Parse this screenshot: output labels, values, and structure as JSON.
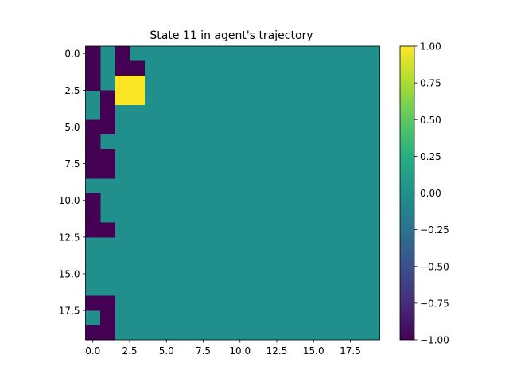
{
  "chart_data": {
    "type": "heatmap",
    "title": "State 11 in agent's trajectory",
    "rows": 20,
    "cols": 20,
    "xticks": [
      0.0,
      2.5,
      5.0,
      7.5,
      10.0,
      12.5,
      15.0,
      17.5
    ],
    "yticks": [
      0.0,
      2.5,
      5.0,
      7.5,
      10.0,
      12.5,
      15.0,
      17.5
    ],
    "xtick_labels": [
      "0.0",
      "2.5",
      "5.0",
      "7.5",
      "10.0",
      "12.5",
      "15.0",
      "17.5"
    ],
    "ytick_labels": [
      "0.0",
      "2.5",
      "5.0",
      "7.5",
      "10.0",
      "12.5",
      "15.0",
      "17.5"
    ],
    "colorbar": {
      "vmin": -1.0,
      "vmax": 1.0,
      "colormap": "viridis",
      "ticks": [
        -1.0,
        -0.75,
        -0.5,
        -0.25,
        0.0,
        0.25,
        0.5,
        0.75,
        1.0
      ],
      "tick_labels": [
        "−1.00",
        "−0.75",
        "−0.50",
        "−0.25",
        "0.00",
        "0.25",
        "0.50",
        "0.75",
        "1.00"
      ]
    },
    "grid": false,
    "default_value": 0,
    "cells": [
      {
        "row": 0,
        "col": 0,
        "value": -1
      },
      {
        "row": 0,
        "col": 2,
        "value": -1
      },
      {
        "row": 1,
        "col": 0,
        "value": -1
      },
      {
        "row": 1,
        "col": 2,
        "value": -1
      },
      {
        "row": 1,
        "col": 3,
        "value": -1
      },
      {
        "row": 2,
        "col": 0,
        "value": -1
      },
      {
        "row": 2,
        "col": 2,
        "value": 1
      },
      {
        "row": 2,
        "col": 3,
        "value": 1
      },
      {
        "row": 3,
        "col": 1,
        "value": -1
      },
      {
        "row": 3,
        "col": 2,
        "value": 1
      },
      {
        "row": 3,
        "col": 3,
        "value": 1
      },
      {
        "row": 4,
        "col": 1,
        "value": -1
      },
      {
        "row": 5,
        "col": 0,
        "value": -1
      },
      {
        "row": 5,
        "col": 1,
        "value": -1
      },
      {
        "row": 6,
        "col": 0,
        "value": -1
      },
      {
        "row": 7,
        "col": 0,
        "value": -1
      },
      {
        "row": 7,
        "col": 1,
        "value": -1
      },
      {
        "row": 8,
        "col": 0,
        "value": -1
      },
      {
        "row": 8,
        "col": 1,
        "value": -1
      },
      {
        "row": 10,
        "col": 0,
        "value": -1
      },
      {
        "row": 11,
        "col": 0,
        "value": -1
      },
      {
        "row": 12,
        "col": 0,
        "value": -1
      },
      {
        "row": 12,
        "col": 1,
        "value": -1
      },
      {
        "row": 17,
        "col": 0,
        "value": -1
      },
      {
        "row": 17,
        "col": 1,
        "value": -1
      },
      {
        "row": 18,
        "col": 1,
        "value": -1
      },
      {
        "row": 19,
        "col": 0,
        "value": -1
      },
      {
        "row": 19,
        "col": 1,
        "value": -1
      }
    ]
  }
}
